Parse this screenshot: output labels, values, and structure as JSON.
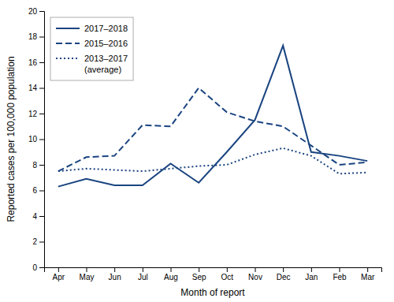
{
  "chart_data": {
    "type": "line",
    "xlabel": "Month of report",
    "ylabel": "Reported cases per 100,000 population",
    "categories": [
      "Apr",
      "May",
      "Jun",
      "Jul",
      "Aug",
      "Sep",
      "Oct",
      "Nov",
      "Dec",
      "Jan",
      "Feb",
      "Mar"
    ],
    "series": [
      {
        "name": "2017–2018",
        "color": "#1a4480",
        "line_style": "solid",
        "values": [
          6.3,
          6.9,
          6.4,
          6.4,
          8.1,
          6.6,
          9.0,
          11.5,
          17.3,
          9.0,
          8.7,
          8.3
        ]
      },
      {
        "name": "2015–2016",
        "color": "#1a4480",
        "line_style": "dashed",
        "values": [
          7.5,
          8.6,
          8.7,
          11.1,
          11.0,
          14.0,
          12.1,
          11.4,
          11.0,
          9.5,
          8.0,
          8.2
        ]
      },
      {
        "name": "2013–2017\n(average)",
        "color": "#1a4480",
        "line_style": "dotted",
        "values": [
          7.5,
          7.7,
          7.6,
          7.5,
          7.7,
          7.9,
          8.0,
          8.8,
          9.3,
          8.7,
          7.3,
          7.4
        ]
      }
    ],
    "ylim": [
      0,
      20
    ],
    "yticks": [
      0,
      2,
      4,
      6,
      8,
      10,
      12,
      14,
      16,
      18,
      20
    ],
    "legend": "upper left"
  }
}
